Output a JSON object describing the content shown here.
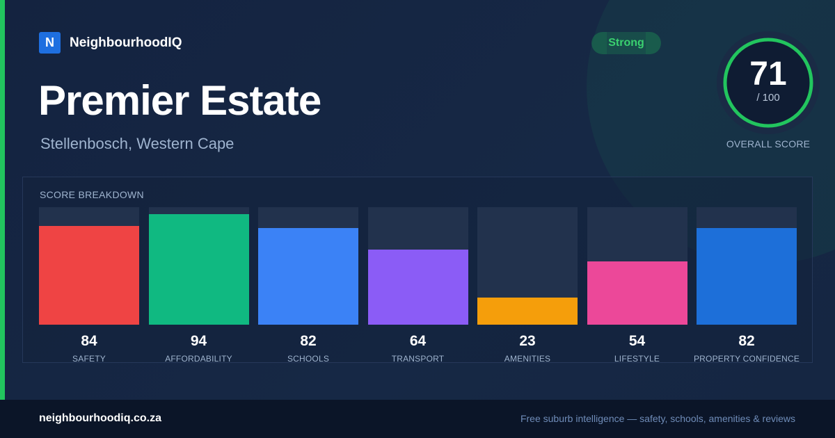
{
  "brand": {
    "logo_letter": "N",
    "name": "NeighbourhoodIQ",
    "logo_color": "#1e6fe0"
  },
  "header": {
    "title": "Premier Estate",
    "location": "Stellenbosch, Western Cape"
  },
  "badge": {
    "label": "Strong",
    "color": "#22c55e"
  },
  "overall": {
    "score": "71",
    "out_of": "/ 100",
    "label": "OVERALL SCORE",
    "value": 71,
    "max": 100,
    "ring_color": "#22c55e"
  },
  "breakdown": {
    "label": "SCORE BREAKDOWN",
    "items": [
      {
        "label": "SAFETY",
        "value": 84,
        "color": "#ef4444"
      },
      {
        "label": "AFFORDABILITY",
        "value": 94,
        "color": "#10b981"
      },
      {
        "label": "SCHOOLS",
        "value": 82,
        "color": "#3b82f6"
      },
      {
        "label": "TRANSPORT",
        "value": 64,
        "color": "#8b5cf6"
      },
      {
        "label": "AMENITIES",
        "value": 23,
        "color": "#f59e0b"
      },
      {
        "label": "LIFESTYLE",
        "value": 54,
        "color": "#ec4899"
      },
      {
        "label": "PROPERTY CONFIDENCE",
        "value": 82,
        "color": "#1d6fd9"
      }
    ]
  },
  "footer": {
    "url": "neighbourhoodiq.co.za",
    "tagline": "Free suburb intelligence — safety, schools, amenities & reviews"
  },
  "accent_color": "#22c55e"
}
